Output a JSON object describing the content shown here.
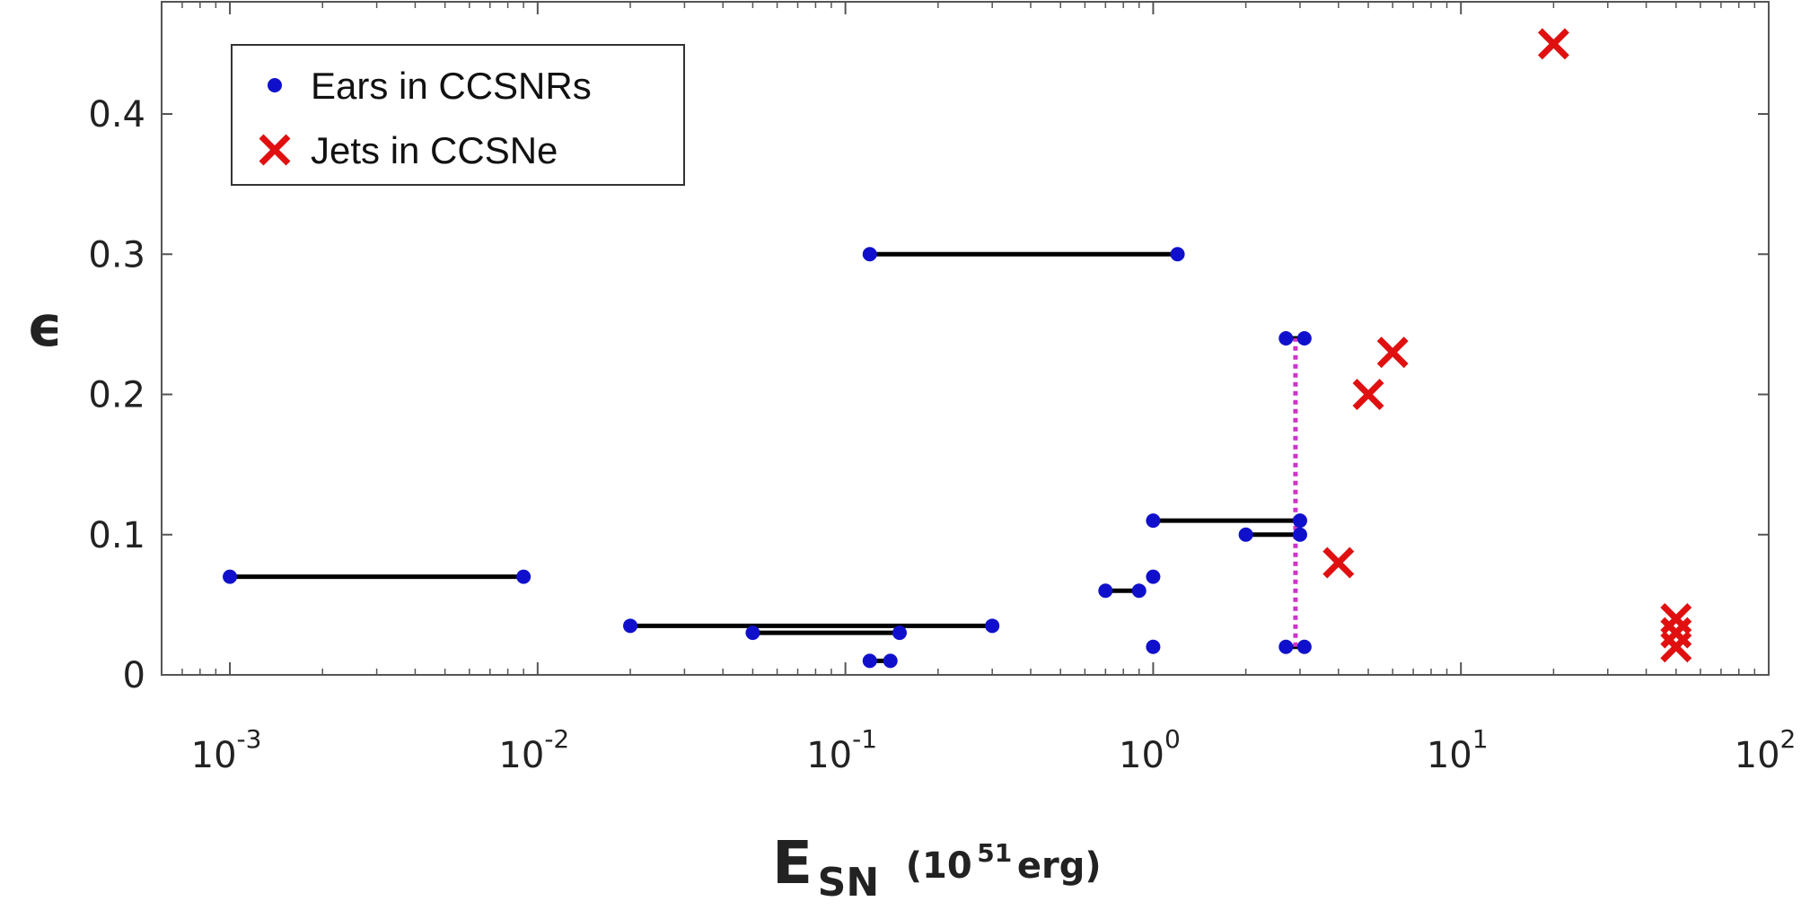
{
  "chart_data": {
    "type": "scatter",
    "xscale": "log",
    "xlim": [
      0.0006,
      100
    ],
    "ylim": [
      0,
      0.48
    ],
    "xticks": [
      {
        "value": 0.001,
        "base": "10",
        "exp": "-3"
      },
      {
        "value": 0.01,
        "base": "10",
        "exp": "-2"
      },
      {
        "value": 0.1,
        "base": "10",
        "exp": "-1"
      },
      {
        "value": 1,
        "base": "10",
        "exp": "0"
      },
      {
        "value": 10,
        "base": "10",
        "exp": "1"
      },
      {
        "value": 100,
        "base": "10",
        "exp": "2"
      }
    ],
    "yticks": [
      {
        "value": 0,
        "label": "0"
      },
      {
        "value": 0.1,
        "label": "0.1"
      },
      {
        "value": 0.2,
        "label": "0.2"
      },
      {
        "value": 0.3,
        "label": "0.3"
      },
      {
        "value": 0.4,
        "label": "0.4"
      }
    ],
    "ylabel": "ϵ",
    "xlabel": {
      "main": "E",
      "sub": "SN",
      "unit_open": "(10",
      "unit_exp": "51",
      "unit_close": " erg)"
    },
    "legend": {
      "position": "top-left",
      "entries": [
        {
          "name": "Ears in CCSNRs",
          "marker": "dot",
          "color": "#1010cc"
        },
        {
          "name": "Jets in CCSNe",
          "marker": "x",
          "color": "#e01010"
        }
      ]
    },
    "series": [
      {
        "name": "Ears in CCSNRs",
        "marker": "dot",
        "color": "#1010cc",
        "segment_color": "#000000",
        "segments": [
          {
            "x": [
              0.001,
              0.009
            ],
            "y": 0.07
          },
          {
            "x": [
              0.02,
              0.3
            ],
            "y": 0.035
          },
          {
            "x": [
              0.05,
              0.15
            ],
            "y": 0.03
          },
          {
            "x": [
              0.12,
              0.14
            ],
            "y": 0.01
          },
          {
            "x": [
              0.12,
              1.2
            ],
            "y": 0.3
          },
          {
            "x": [
              0.7,
              0.9
            ],
            "y": 0.06
          },
          {
            "x": [
              1.0,
              3.0
            ],
            "y": 0.11
          },
          {
            "x": [
              2.0,
              3.0
            ],
            "y": 0.1
          },
          {
            "x": [
              2.7,
              3.1
            ],
            "y": 0.24
          },
          {
            "x": [
              2.7,
              3.1
            ],
            "y": 0.02
          }
        ],
        "points": [
          {
            "x": 1.0,
            "y": 0.07
          },
          {
            "x": 1.0,
            "y": 0.02
          }
        ]
      },
      {
        "name": "Jets in CCSNe",
        "marker": "x",
        "color": "#e01010",
        "points": [
          {
            "x": 20,
            "y": 0.45
          },
          {
            "x": 6,
            "y": 0.23
          },
          {
            "x": 5,
            "y": 0.2
          },
          {
            "x": 4,
            "y": 0.08
          },
          {
            "x": 50,
            "y": 0.04
          },
          {
            "x": 50,
            "y": 0.03
          },
          {
            "x": 50,
            "y": 0.02
          }
        ]
      }
    ],
    "reference_line": {
      "x": 2.9,
      "y": [
        0.02,
        0.24
      ],
      "color": "#cc33cc",
      "style": "dotted"
    }
  }
}
